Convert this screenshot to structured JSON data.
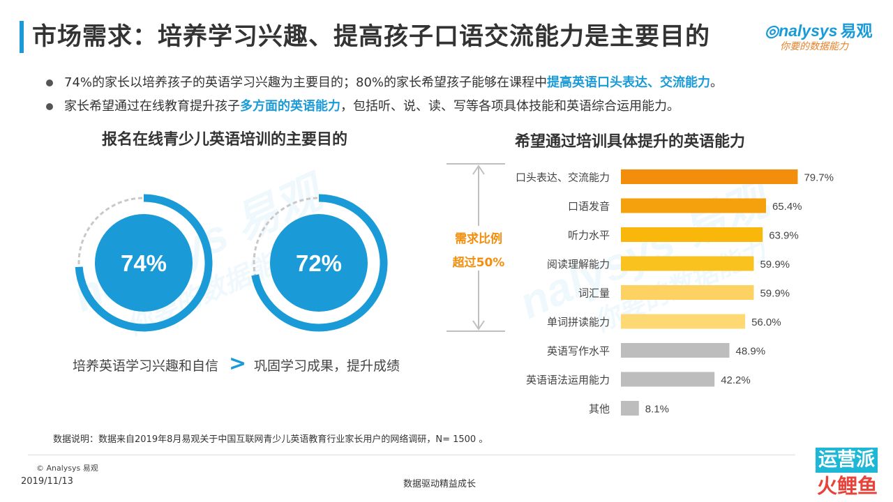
{
  "header": {
    "title": "市场需求：培养学习兴趣、提高孩子口语交流能力是主要目的",
    "logo_brand": "nalysys",
    "logo_brand_cn": "易观",
    "logo_slogan": "你要的数据能力"
  },
  "bullets": [
    {
      "pre": "74%的家长以培养孩子的英语学习兴趣为主要目的；80%的家长希望孩子能够在课程中",
      "highlight": "提高英语口头表达、交流能力",
      "post": "。"
    },
    {
      "pre": "家长希望通过在线教育提升孩子",
      "highlight": "多方面的英语能力",
      "post": "，包括听、说、读、写等各项具体技能和英语综合运用能力。"
    }
  ],
  "left_section": {
    "title": "报名在线青少儿英语培训的主要目的",
    "comparator": ">"
  },
  "right_section": {
    "title": "希望通过培训具体提升的英语能力",
    "annotation_line1": "需求比例",
    "annotation_line2": "超过50%"
  },
  "chart_data": [
    {
      "type": "donut",
      "items": [
        {
          "label": "74%",
          "value": 74,
          "caption": "培养英语学习兴趣和自信"
        },
        {
          "label": "72%",
          "value": 72,
          "caption": "巩固学习成果，提升成绩"
        }
      ],
      "colors": {
        "ring": "#1a9bd7",
        "center": "#1a9bd7",
        "remainder": "#c8c8c8"
      }
    },
    {
      "type": "bar",
      "orientation": "horizontal",
      "categories": [
        "口头表达、交流能力",
        "口语发音",
        "听力水平",
        "阅读理解能力",
        "词汇量",
        "单词拼读能力",
        "英语写作水平",
        "英语语法运用能力",
        "其他"
      ],
      "values": [
        79.7,
        65.4,
        63.9,
        59.9,
        59.9,
        56.0,
        48.9,
        42.2,
        8.1
      ],
      "labels": [
        "79.7%",
        "65.4%",
        "63.9%",
        "59.9%",
        "59.9%",
        "56.0%",
        "48.9%",
        "42.2%",
        "8.1%"
      ],
      "colors": [
        "#f28e0c",
        "#f5a00d",
        "#f8b70a",
        "#fac21e",
        "#fdd162",
        "#fdd873",
        "#bdbdbd",
        "#bdbdbd",
        "#bdbdbd"
      ],
      "xlim": [
        0,
        100
      ]
    }
  ],
  "footer": {
    "note": "数据说明：数据来自2019年8月易观关于中国互联网青少儿英语教育行业家长用户的网络调研，N= 1500 。",
    "copyright": "© Analysys 易观",
    "date": "2019/11/13",
    "center_text": "数据驱动精益成长",
    "badge_line1": "运营派",
    "badge_line2": "火鲤鱼"
  },
  "watermark": {
    "text": "nalysys 易观",
    "slogan": "你要的数据能力"
  }
}
